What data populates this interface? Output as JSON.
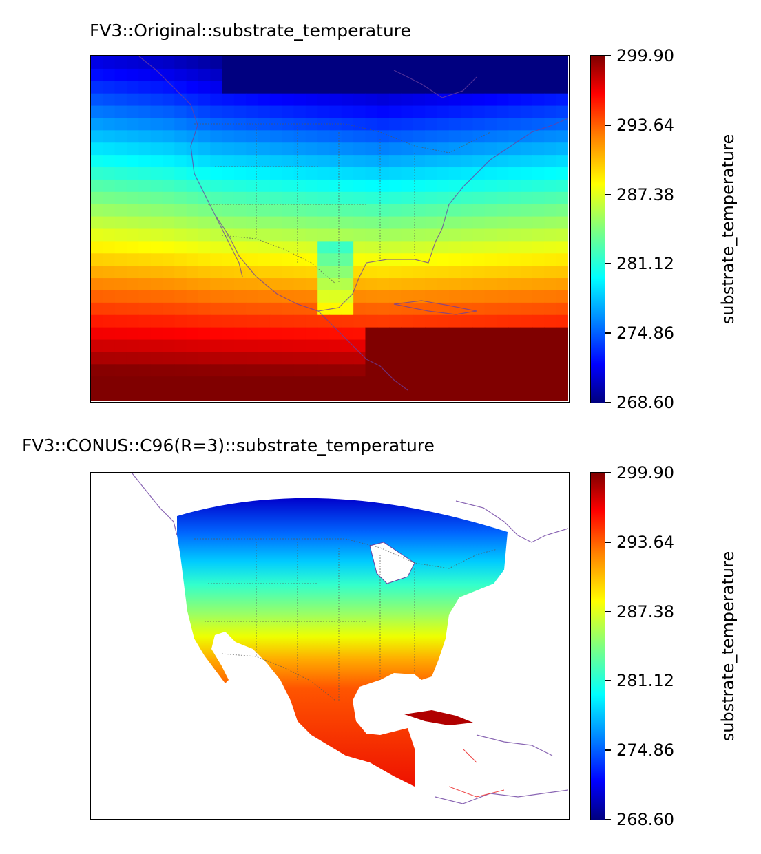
{
  "colormap": "jet",
  "panels": [
    {
      "title": "FV3::Original::substrate_temperature",
      "colorbar": {
        "label": "substrate_temperature",
        "min": 268.6,
        "max": 299.9,
        "ticks": [
          "299.90",
          "293.64",
          "287.38",
          "281.12",
          "274.86",
          "268.60"
        ]
      }
    },
    {
      "title": "FV3::CONUS::C96(R=3)::substrate_temperature",
      "colorbar": {
        "label": "substrate_temperature",
        "min": 268.6,
        "max": 299.9,
        "ticks": [
          "299.90",
          "293.64",
          "287.38",
          "281.12",
          "274.86",
          "268.60"
        ]
      }
    }
  ]
}
